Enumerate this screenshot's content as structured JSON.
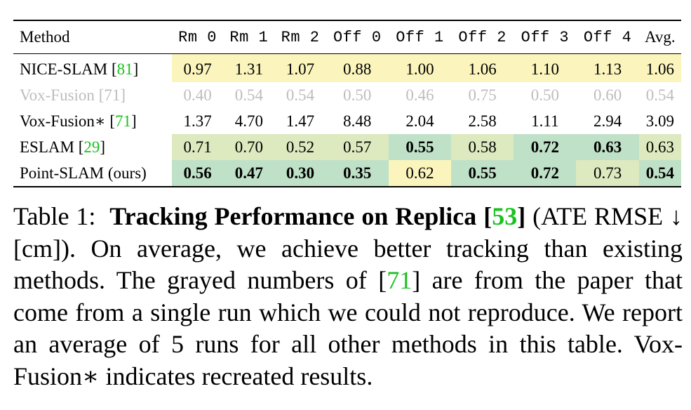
{
  "table": {
    "header": {
      "method": "Method",
      "columns": [
        "Rm 0",
        "Rm 1",
        "Rm 2",
        "Off 0",
        "Off 1",
        "Off 2",
        "Off 3",
        "Off 4"
      ],
      "avg": "Avg."
    },
    "rows": [
      {
        "name": "NICE-SLAM",
        "ref": "81",
        "cells": [
          "0.97",
          "1.31",
          "1.07",
          "0.88",
          "1.00",
          "1.06",
          "1.10",
          "1.13",
          "1.06"
        ]
      },
      {
        "name": "Vox-Fusion",
        "ref": "71",
        "cells": [
          "0.40",
          "0.54",
          "0.54",
          "0.50",
          "0.46",
          "0.75",
          "0.50",
          "0.60",
          "0.54"
        ]
      },
      {
        "name": "Vox-Fusion∗",
        "ref": "71",
        "cells": [
          "1.37",
          "4.70",
          "1.47",
          "8.48",
          "2.04",
          "2.58",
          "1.11",
          "2.94",
          "3.09"
        ]
      },
      {
        "name": "ESLAM",
        "ref": "29",
        "cells": [
          "0.71",
          "0.70",
          "0.52",
          "0.57",
          "0.55",
          "0.58",
          "0.72",
          "0.63",
          "0.63"
        ]
      },
      {
        "name": "Point-SLAM (ours)",
        "ref": "",
        "cells": [
          "0.56",
          "0.47",
          "0.30",
          "0.35",
          "0.62",
          "0.55",
          "0.72",
          "0.73",
          "0.54"
        ]
      }
    ],
    "colors": {
      "best": "#bfe1c8",
      "second": "#dde9bf",
      "third": "#fbf5bd",
      "citation": "#19c21f",
      "grayed": "#bdbdbd"
    }
  },
  "caption": {
    "label": "Table 1:",
    "title": "Tracking Performance on Replica",
    "title_ref": "53",
    "part1": "(ATE RMSE ↓ [cm]). On average, we achieve better tracking than existing methods. The grayed numbers of",
    "ref2": "71",
    "part2": "are from the paper that come from a single run which we could not reproduce. We report an average of 5 runs for all other methods in this table. Vox-Fusion∗ indicates recreated results."
  }
}
